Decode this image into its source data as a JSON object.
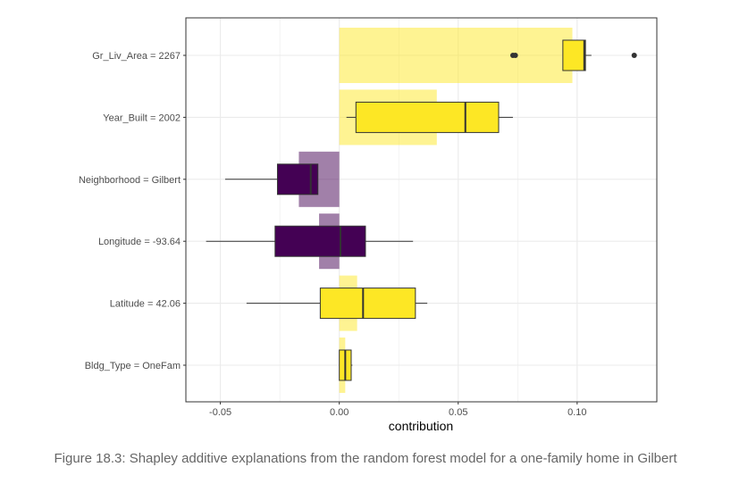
{
  "chart_data": {
    "type": "box",
    "title": "",
    "xlabel": "contribution",
    "ylabel": "",
    "xlim": [
      -0.0645,
      0.1335
    ],
    "xticks": [
      -0.05,
      0.0,
      0.05,
      0.1
    ],
    "xtick_labels": [
      "-0.05",
      "0.00",
      "0.05",
      "0.10"
    ],
    "grid": true,
    "legend": "none",
    "colors": {
      "positive": "#fde725",
      "negative": "#440154",
      "panel_border": "#333333",
      "grid": "#ebebeb"
    },
    "features": [
      {
        "label": "Gr_Liv_Area = 2267",
        "mean": 0.098,
        "positive": true,
        "box": {
          "whisker_low": 0.094,
          "q1": 0.094,
          "median": 0.103,
          "q3": 0.1035,
          "whisker_high": 0.106
        },
        "outliers": [
          0.073,
          0.074,
          0.124
        ]
      },
      {
        "label": "Year_Built = 2002",
        "mean": 0.041,
        "positive": true,
        "box": {
          "whisker_low": 0.003,
          "q1": 0.007,
          "median": 0.053,
          "q3": 0.067,
          "whisker_high": 0.073
        },
        "outliers": []
      },
      {
        "label": "Neighborhood = Gilbert",
        "mean": -0.017,
        "positive": false,
        "box": {
          "whisker_low": -0.048,
          "q1": -0.026,
          "median": -0.012,
          "q3": -0.009,
          "whisker_high": -0.009
        },
        "outliers": []
      },
      {
        "label": "Longitude = -93.64",
        "mean": -0.0085,
        "positive": false,
        "box": {
          "whisker_low": -0.056,
          "q1": -0.027,
          "median": 0.0005,
          "q3": 0.011,
          "whisker_high": 0.031
        },
        "outliers": []
      },
      {
        "label": "Latitude = 42.06",
        "mean": 0.0075,
        "positive": true,
        "box": {
          "whisker_low": -0.039,
          "q1": -0.008,
          "median": 0.01,
          "q3": 0.032,
          "whisker_high": 0.037
        },
        "outliers": []
      },
      {
        "label": "Bldg_Type = OneFam",
        "mean": 0.0025,
        "positive": true,
        "box": {
          "whisker_low": 0.0,
          "q1": 0.0,
          "median": 0.0025,
          "q3": 0.005,
          "whisker_high": 0.0055
        },
        "outliers": []
      }
    ]
  },
  "caption": "Figure 18.3: Shapley additive explanations from the random forest model for a one-family home in Gilbert"
}
